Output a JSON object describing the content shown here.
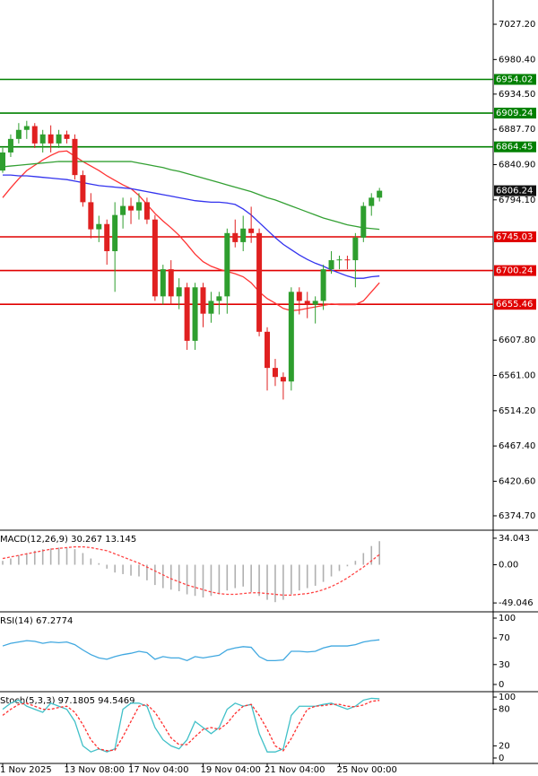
{
  "chart_data": [
    {
      "type": "candlestick",
      "categories": [
        "1 Nov 2025",
        null,
        null,
        null,
        null,
        null,
        null,
        null,
        "13 Nov 08:00",
        null,
        null,
        null,
        null,
        null,
        null,
        null,
        "17 Nov 04:00",
        null,
        null,
        null,
        null,
        null,
        null,
        null,
        null,
        "19 Nov 04:00",
        null,
        null,
        null,
        null,
        null,
        null,
        null,
        "21 Nov 04:00",
        null,
        null,
        null,
        null,
        null,
        null,
        null,
        null,
        "25 Nov 00:00",
        null,
        null,
        null,
        null,
        null
      ],
      "open": [
        6833,
        6857,
        6875,
        6887,
        6892,
        6869,
        6881,
        6869,
        6881,
        6875,
        6827,
        6791,
        6755,
        6762,
        6726,
        6774,
        6786,
        6780,
        6791,
        6768,
        6666,
        6702,
        6666,
        6678,
        6607,
        6678,
        6643,
        6660,
        6666,
        6750,
        6738,
        6756,
        6750,
        6619,
        6571,
        6559,
        6553,
        6672,
        6660,
        6655,
        6660,
        6702,
        6714,
        6715,
        6714,
        6744,
        6786,
        6797
      ],
      "high": [
        6863,
        6881,
        6896,
        6899,
        6896,
        6887,
        6893,
        6887,
        6886,
        6881,
        6833,
        6803,
        6773,
        6768,
        6791,
        6797,
        6797,
        6803,
        6797,
        6774,
        6708,
        6714,
        6690,
        6684,
        6684,
        6684,
        6672,
        6672,
        6756,
        6768,
        6773,
        6785,
        6756,
        6625,
        6583,
        6565,
        6678,
        6678,
        6672,
        6666,
        6708,
        6726,
        6720,
        6720,
        6750,
        6791,
        6803,
        6810
      ],
      "low": [
        6830,
        6851,
        6869,
        6875,
        6863,
        6857,
        6857,
        6863,
        6869,
        6821,
        6785,
        6743,
        6738,
        6708,
        6672,
        6756,
        6762,
        6768,
        6762,
        6660,
        6655,
        6655,
        6649,
        6595,
        6595,
        6625,
        6631,
        6642,
        6643,
        6731,
        6726,
        6737,
        6613,
        6541,
        6547,
        6529,
        6541,
        6642,
        6637,
        6630,
        6648,
        6696,
        6702,
        6702,
        6678,
        6738,
        6773,
        6792
      ],
      "close": [
        6857,
        6875,
        6887,
        6892,
        6869,
        6881,
        6869,
        6881,
        6875,
        6827,
        6791,
        6755,
        6762,
        6726,
        6774,
        6786,
        6780,
        6791,
        6768,
        6666,
        6702,
        6666,
        6678,
        6607,
        6678,
        6643,
        6660,
        6666,
        6750,
        6738,
        6756,
        6750,
        6619,
        6571,
        6559,
        6553,
        6672,
        6660,
        6655,
        6660,
        6702,
        6714,
        6715,
        6714,
        6744,
        6786,
        6797,
        6806.24
      ],
      "up_color": "#2e9e2e",
      "down_color": "#e02020",
      "moving_averages": [
        {
          "color": "#ff3333",
          "values": [
            6797,
            6810,
            6822,
            6833,
            6840,
            6847,
            6853,
            6858,
            6859,
            6852,
            6845,
            6839,
            6833,
            6826,
            6820,
            6814,
            6809,
            6800,
            6788,
            6776,
            6766,
            6757,
            6747,
            6735,
            6722,
            6712,
            6706,
            6702,
            6699,
            6696,
            6692,
            6684,
            6672,
            6663,
            6657,
            6650,
            6647,
            6648,
            6650,
            6652,
            6654,
            6656,
            6655,
            6655,
            6655,
            6660,
            6672,
            6684
          ]
        },
        {
          "color": "#3333ee",
          "values": [
            6827,
            6827,
            6826,
            6826,
            6825,
            6824,
            6823,
            6822,
            6821,
            6819,
            6817,
            6815,
            6813,
            6812,
            6811,
            6810,
            6809,
            6807,
            6805,
            6803,
            6801,
            6799,
            6797,
            6795,
            6793,
            6792,
            6791,
            6791,
            6790,
            6788,
            6782,
            6774,
            6764,
            6754,
            6744,
            6735,
            6728,
            6721,
            6715,
            6710,
            6706,
            6701,
            6697,
            6693,
            6690,
            6690,
            6692,
            6693
          ]
        },
        {
          "color": "#33a033",
          "values": [
            6838,
            6839,
            6840,
            6841,
            6842,
            6843,
            6844,
            6845,
            6845,
            6845,
            6845,
            6845,
            6845,
            6845,
            6845,
            6845,
            6845,
            6843,
            6841,
            6839,
            6837,
            6834,
            6832,
            6829,
            6826,
            6823,
            6820,
            6817,
            6814,
            6811,
            6808,
            6805,
            6801,
            6797,
            6794,
            6790,
            6786,
            6782,
            6778,
            6774,
            6770,
            6767,
            6764,
            6761,
            6759,
            6757,
            6756,
            6755
          ]
        }
      ],
      "levels": [
        {
          "value": 6954.02,
          "color": "#008000"
        },
        {
          "value": 6909.24,
          "color": "#008000"
        },
        {
          "value": 6864.45,
          "color": "#008000"
        },
        {
          "value": 6745.03,
          "color": "#e00000"
        },
        {
          "value": 6700.24,
          "color": "#e00000"
        },
        {
          "value": 6655.46,
          "color": "#e00000"
        }
      ],
      "last_price": 6806.24,
      "ylim": [
        6356.8,
        7059.4
      ],
      "yticks": [
        {
          "value": 7027.2,
          "label": "7027.20"
        },
        {
          "value": 6980.4,
          "label": "6980.40"
        },
        {
          "value": 6934.5,
          "label": "6934.50"
        },
        {
          "value": 6887.7,
          "label": "6887.70"
        },
        {
          "value": 6840.9,
          "label": "6840.90"
        },
        {
          "value": 6794.1,
          "label": "6794.10"
        },
        {
          "value": 6607.8,
          "label": "6607.80"
        },
        {
          "value": 6561,
          "label": "6561.00"
        },
        {
          "value": 6514.2,
          "label": "6514.20"
        },
        {
          "value": 6467.4,
          "label": "6467.40"
        },
        {
          "value": 6420.6,
          "label": "6420.60"
        },
        {
          "value": 6374.7,
          "label": "6374.70"
        }
      ]
    },
    {
      "type": "macd",
      "title": "MACD(12,26,9) 30.267 13.145",
      "histogram": {
        "color": "#b0b0b0",
        "values": [
          5,
          8,
          12,
          15,
          18,
          20,
          21,
          22,
          22,
          20,
          15,
          8,
          2,
          -5,
          -10,
          -12,
          -14,
          -15,
          -20,
          -26,
          -30,
          -32,
          -34,
          -38,
          -40,
          -42,
          -40,
          -38,
          -33,
          -30,
          -28,
          -35,
          -40,
          -45,
          -48,
          -45,
          -38,
          -33,
          -30,
          -27,
          -22,
          -15,
          -8,
          -2,
          5,
          15,
          24,
          30.267
        ]
      },
      "signal": {
        "color": "#ff4444",
        "values": [
          8,
          10,
          12,
          14,
          16,
          18,
          20,
          21,
          22,
          23,
          23,
          22,
          20,
          18,
          14,
          10,
          6,
          2,
          -3,
          -8,
          -13,
          -18,
          -22,
          -26,
          -29,
          -32,
          -35,
          -37,
          -38,
          -38,
          -37,
          -36,
          -36,
          -37,
          -38,
          -39,
          -39,
          -38,
          -37,
          -35,
          -32,
          -28,
          -23,
          -17,
          -10,
          -3,
          5,
          13.145
        ]
      },
      "ylim": [
        -59.3,
        43.2
      ],
      "yticks": [
        34.043,
        {
          "value": 0,
          "label": "0.00"
        },
        -49.046
      ]
    },
    {
      "type": "line",
      "title": "RSI(14) 67.2774",
      "color": "#40a8e0",
      "values": [
        58,
        62,
        64,
        66,
        65,
        62,
        64,
        63,
        64,
        60,
        52,
        45,
        40,
        38,
        42,
        45,
        47,
        50,
        48,
        38,
        42,
        40,
        40,
        36,
        42,
        40,
        42,
        44,
        52,
        55,
        57,
        56,
        42,
        36,
        36,
        37,
        50,
        50,
        49,
        50,
        55,
        58,
        58,
        58,
        60,
        64,
        66,
        67.2774
      ],
      "ylim": [
        -9.5,
        108.1
      ],
      "yticks": [
        100,
        70,
        30,
        0
      ]
    },
    {
      "type": "stochastic",
      "title": "Stoch(5,3,3) 97.1805 94.5469",
      "main": {
        "color": "#40c0c8",
        "values": [
          80,
          90,
          95,
          85,
          80,
          75,
          90,
          85,
          80,
          60,
          20,
          10,
          15,
          10,
          15,
          80,
          90,
          90,
          85,
          50,
          30,
          20,
          15,
          30,
          60,
          50,
          40,
          50,
          80,
          90,
          85,
          88,
          40,
          10,
          10,
          15,
          70,
          85,
          85,
          85,
          88,
          90,
          85,
          80,
          85,
          95,
          98,
          97.1805
        ]
      },
      "signal": {
        "color": "#ff3030",
        "values": [
          70,
          80,
          88,
          90,
          85,
          80,
          80,
          83,
          85,
          75,
          55,
          30,
          15,
          12,
          13,
          35,
          60,
          85,
          88,
          75,
          55,
          33,
          22,
          22,
          35,
          47,
          50,
          47,
          57,
          73,
          85,
          88,
          70,
          47,
          20,
          12,
          32,
          57,
          80,
          85,
          86,
          88,
          88,
          85,
          84,
          87,
          93,
          94.5469
        ]
      },
      "ylim": [
        -7.4,
        107.4
      ],
      "yticks": [
        100,
        80,
        20,
        0
      ]
    }
  ]
}
